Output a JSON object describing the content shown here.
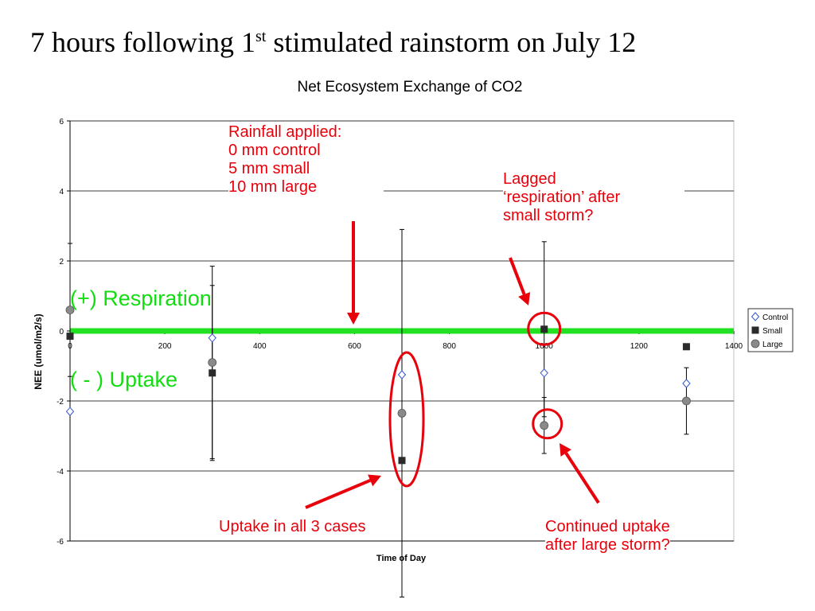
{
  "slide": {
    "title_main": "7 hours following 1",
    "title_sup": "st",
    "title_rest": " stimulated rainstorm on July 12"
  },
  "chart_data": {
    "type": "scatter",
    "title": "Net Ecosystem Exchange of CO2",
    "xlabel": "Time of Day",
    "ylabel": "NEE (umol/m2/s)",
    "xlim": [
      0,
      1400
    ],
    "ylim": [
      -6,
      6
    ],
    "x_ticks": [
      0,
      200,
      400,
      600,
      800,
      1000,
      1200,
      1400
    ],
    "y_ticks": [
      -6,
      -4,
      -2,
      0,
      2,
      4,
      6
    ],
    "grid": {
      "horizontal": true,
      "vertical": false
    },
    "legend_position": "right",
    "series": [
      {
        "name": "Control",
        "marker": "diamond-open",
        "color": "#3355cc",
        "points": [
          {
            "x": 0,
            "y": -2.3,
            "err": 0
          },
          {
            "x": 300,
            "y": -0.2,
            "err": 0
          },
          {
            "x": 700,
            "y": -1.25,
            "err": 0
          },
          {
            "x": 1000,
            "y": -1.2,
            "err": 0
          },
          {
            "x": 1300,
            "y": -1.5,
            "err": 0
          }
        ]
      },
      {
        "name": "Small",
        "marker": "square",
        "color": "#2b2b2b",
        "points": [
          {
            "x": 0,
            "y": -0.15,
            "err": 0
          },
          {
            "x": 300,
            "y": -1.2,
            "err": 2.5
          },
          {
            "x": 700,
            "y": -3.7,
            "err": 0
          },
          {
            "x": 1000,
            "y": 0.05,
            "err": 2.5
          },
          {
            "x": 1300,
            "y": -0.45,
            "err": 0
          }
        ]
      },
      {
        "name": "Large",
        "marker": "circle",
        "color": "#8a8a8a",
        "points": [
          {
            "x": 0,
            "y": 0.6,
            "err": 1.9
          },
          {
            "x": 300,
            "y": -0.9,
            "err": 2.75
          },
          {
            "x": 700,
            "y": -2.35,
            "err": 5.25
          },
          {
            "x": 1000,
            "y": -2.7,
            "err": 0.8
          },
          {
            "x": 1300,
            "y": -2.0,
            "err": 0.95
          }
        ]
      }
    ],
    "reference_line": {
      "y": 0,
      "color": "#22e022"
    }
  },
  "annotations": {
    "rainfall": "Rainfall applied:\n0 mm control\n5 mm small\n10 mm large",
    "lagged": "Lagged\n‘respiration’ after\nsmall storm?",
    "uptake_all": "Uptake in all 3 cases",
    "continued": "Continued uptake\nafter large storm?",
    "respiration_zone": "(+) Respiration",
    "uptake_zone": "( - ) Uptake"
  },
  "colors": {
    "annotation": "#e8000b",
    "zone": "#11dd11"
  }
}
